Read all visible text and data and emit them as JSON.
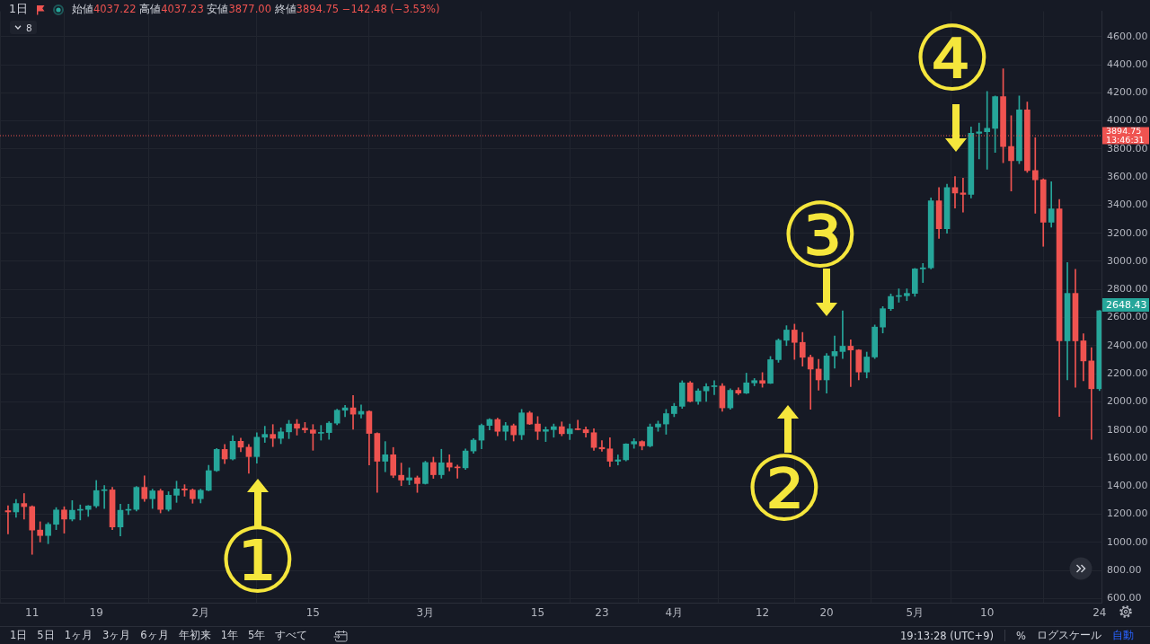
{
  "chart_data": {
    "type": "candlestick",
    "title": "1日",
    "subtitle": "始値4037.22 高値4037.23 安値3877.00 終値3894.75 −142.48 (−3.53%)",
    "x": [
      "--01-08",
      "--01-09",
      "--01-10",
      "--01-11",
      "--01-12",
      "--01-13",
      "--01-14",
      "--01-15",
      "--01-16",
      "--01-17",
      "--01-18",
      "--01-19",
      "--01-20",
      "--01-21",
      "--01-22",
      "--01-23",
      "--01-24",
      "--01-25",
      "--01-26",
      "--01-27",
      "--01-28",
      "--01-29",
      "--01-30",
      "--01-31",
      "--02-01",
      "--02-02",
      "--02-03",
      "--02-04",
      "--02-05",
      "--02-06",
      "--02-07",
      "--02-08",
      "--02-09",
      "--02-10",
      "--02-11",
      "--02-12",
      "--02-13",
      "--02-14",
      "--02-15",
      "--02-16",
      "--02-17",
      "--02-18",
      "--02-19",
      "--02-20",
      "--02-21",
      "--02-22",
      "--02-23",
      "--02-24",
      "--02-25",
      "--02-26",
      "--02-27",
      "--02-28",
      "--03-01",
      "--03-02",
      "--03-03",
      "--03-04",
      "--03-05",
      "--03-06",
      "--03-07",
      "--03-08",
      "--03-09",
      "--03-10",
      "--03-11",
      "--03-12",
      "--03-13",
      "--03-14",
      "--03-15",
      "--03-16",
      "--03-17",
      "--03-18",
      "--03-19",
      "--03-20",
      "--03-21",
      "--03-22",
      "--03-23",
      "--03-24",
      "--03-25",
      "--03-26",
      "--03-27",
      "--03-28",
      "--03-29",
      "--03-30",
      "--03-31",
      "--04-01",
      "--04-02",
      "--04-03",
      "--04-04",
      "--04-05",
      "--04-06",
      "--04-07",
      "--04-08",
      "--04-09",
      "--04-10",
      "--04-11",
      "--04-12",
      "--04-13",
      "--04-14",
      "--04-15",
      "--04-16",
      "--04-17",
      "--04-18",
      "--04-19",
      "--04-20",
      "--04-21",
      "--04-22",
      "--04-23",
      "--04-24",
      "--04-25",
      "--04-26",
      "--04-27",
      "--04-28",
      "--04-29",
      "--04-30",
      "--05-01",
      "--05-02",
      "--05-03",
      "--05-04",
      "--05-05",
      "--05-06",
      "--05-07",
      "--05-08",
      "--05-09",
      "--05-10",
      "--05-11",
      "--05-12",
      "--05-13",
      "--05-14",
      "--05-15",
      "--05-16",
      "--05-17",
      "--05-18",
      "--05-19",
      "--05-20",
      "--05-21",
      "--05-22",
      "--05-23",
      "--05-24"
    ],
    "ohlc": [
      [
        1225,
        1260,
        1060,
        1216
      ],
      [
        1216,
        1305,
        1178,
        1276
      ],
      [
        1276,
        1347,
        1165,
        1254
      ],
      [
        1254,
        1260,
        914,
        1087
      ],
      [
        1087,
        1146,
        1002,
        1048
      ],
      [
        1048,
        1140,
        990,
        1128
      ],
      [
        1128,
        1247,
        1090,
        1230
      ],
      [
        1230,
        1253,
        1065,
        1165
      ],
      [
        1165,
        1297,
        1152,
        1228
      ],
      [
        1228,
        1266,
        1159,
        1234
      ],
      [
        1234,
        1262,
        1184,
        1259
      ],
      [
        1259,
        1440,
        1247,
        1368
      ],
      [
        1368,
        1404,
        1241,
        1373
      ],
      [
        1373,
        1391,
        1090,
        1109
      ],
      [
        1109,
        1272,
        1045,
        1228
      ],
      [
        1228,
        1272,
        1197,
        1234
      ],
      [
        1234,
        1397,
        1222,
        1391
      ],
      [
        1391,
        1473,
        1291,
        1310
      ],
      [
        1310,
        1378,
        1241,
        1366
      ],
      [
        1366,
        1378,
        1209,
        1234
      ],
      [
        1234,
        1360,
        1222,
        1335
      ],
      [
        1335,
        1435,
        1284,
        1380
      ],
      [
        1380,
        1410,
        1328,
        1372
      ],
      [
        1372,
        1380,
        1278,
        1310
      ],
      [
        1310,
        1378,
        1280,
        1370
      ],
      [
        1370,
        1548,
        1366,
        1510
      ],
      [
        1510,
        1668,
        1504,
        1661
      ],
      [
        1661,
        1696,
        1560,
        1593
      ],
      [
        1593,
        1759,
        1585,
        1719
      ],
      [
        1719,
        1742,
        1644,
        1677
      ],
      [
        1677,
        1696,
        1491,
        1610
      ],
      [
        1610,
        1780,
        1564,
        1748
      ],
      [
        1748,
        1826,
        1711,
        1768
      ],
      [
        1768,
        1838,
        1681,
        1740
      ],
      [
        1740,
        1815,
        1702,
        1786
      ],
      [
        1786,
        1868,
        1738,
        1842
      ],
      [
        1842,
        1874,
        1763,
        1812
      ],
      [
        1812,
        1853,
        1780,
        1800
      ],
      [
        1800,
        1838,
        1655,
        1776
      ],
      [
        1776,
        1832,
        1727,
        1781
      ],
      [
        1781,
        1859,
        1733,
        1848
      ],
      [
        1848,
        1947,
        1836,
        1940
      ],
      [
        1940,
        1974,
        1894,
        1957
      ],
      [
        1957,
        2045,
        1805,
        1912
      ],
      [
        1912,
        1978,
        1884,
        1932
      ],
      [
        1932,
        1937,
        1550,
        1775
      ],
      [
        1775,
        1780,
        1355,
        1577
      ],
      [
        1577,
        1717,
        1502,
        1623
      ],
      [
        1623,
        1675,
        1460,
        1477
      ],
      [
        1477,
        1564,
        1403,
        1443
      ],
      [
        1443,
        1530,
        1410,
        1459
      ],
      [
        1459,
        1472,
        1355,
        1418
      ],
      [
        1418,
        1577,
        1414,
        1568
      ],
      [
        1568,
        1606,
        1455,
        1481
      ],
      [
        1481,
        1662,
        1456,
        1566
      ],
      [
        1566,
        1623,
        1508,
        1535
      ],
      [
        1535,
        1550,
        1456,
        1530
      ],
      [
        1530,
        1665,
        1519,
        1650
      ],
      [
        1650,
        1738,
        1633,
        1727
      ],
      [
        1727,
        1842,
        1665,
        1832
      ],
      [
        1832,
        1880,
        1800,
        1874
      ],
      [
        1874,
        1884,
        1758,
        1790
      ],
      [
        1790,
        1853,
        1727,
        1830
      ],
      [
        1830,
        1842,
        1721,
        1765
      ],
      [
        1765,
        1946,
        1731,
        1921
      ],
      [
        1921,
        1932,
        1838,
        1842
      ],
      [
        1842,
        1895,
        1731,
        1790
      ],
      [
        1790,
        1821,
        1717,
        1802
      ],
      [
        1802,
        1842,
        1748,
        1823
      ],
      [
        1823,
        1857,
        1758,
        1773
      ],
      [
        1773,
        1842,
        1731,
        1807
      ],
      [
        1807,
        1869,
        1800,
        1802
      ],
      [
        1802,
        1821,
        1748,
        1780
      ],
      [
        1780,
        1809,
        1654,
        1675
      ],
      [
        1675,
        1723,
        1648,
        1665
      ],
      [
        1665,
        1745,
        1539,
        1577
      ],
      [
        1577,
        1622,
        1550,
        1587
      ],
      [
        1587,
        1702,
        1579,
        1700
      ],
      [
        1700,
        1738,
        1669,
        1717
      ],
      [
        1717,
        1723,
        1658,
        1686
      ],
      [
        1686,
        1842,
        1679,
        1821
      ],
      [
        1821,
        1863,
        1790,
        1842
      ],
      [
        1842,
        1946,
        1769,
        1916
      ],
      [
        1916,
        1989,
        1894,
        1968
      ],
      [
        1968,
        2150,
        1953,
        2135
      ],
      [
        2135,
        2145,
        1999,
        2003
      ],
      [
        2003,
        2093,
        1982,
        2078
      ],
      [
        2078,
        2129,
        2003,
        2108
      ],
      [
        2108,
        2151,
        2051,
        2112
      ],
      [
        2112,
        2129,
        1932,
        1957
      ],
      [
        1957,
        2093,
        1947,
        2082
      ],
      [
        2082,
        2100,
        2051,
        2062
      ],
      [
        2062,
        2204,
        2058,
        2135
      ],
      [
        2135,
        2166,
        2114,
        2151
      ],
      [
        2151,
        2208,
        2104,
        2132
      ],
      [
        2132,
        2323,
        2130,
        2300
      ],
      [
        2300,
        2448,
        2281,
        2438
      ],
      [
        2438,
        2542,
        2400,
        2511
      ],
      [
        2511,
        2553,
        2302,
        2423
      ],
      [
        2423,
        2494,
        2254,
        2317
      ],
      [
        2317,
        2333,
        1947,
        2233
      ],
      [
        2233,
        2302,
        2082,
        2156
      ],
      [
        2156,
        2344,
        2062,
        2327
      ],
      [
        2327,
        2469,
        2239,
        2358
      ],
      [
        2358,
        2647,
        2308,
        2396
      ],
      [
        2396,
        2442,
        2108,
        2369
      ],
      [
        2369,
        2372,
        2156,
        2212
      ],
      [
        2212,
        2354,
        2170,
        2319
      ],
      [
        2319,
        2547,
        2308,
        2532
      ],
      [
        2532,
        2678,
        2490,
        2663
      ],
      [
        2663,
        2768,
        2650,
        2750
      ],
      [
        2750,
        2804,
        2709,
        2755
      ],
      [
        2755,
        2804,
        2720,
        2772
      ],
      [
        2772,
        2950,
        2751,
        2946
      ],
      [
        2946,
        2985,
        2849,
        2954
      ],
      [
        2954,
        3452,
        2946,
        3431
      ],
      [
        3431,
        3525,
        3163,
        3232
      ],
      [
        3232,
        3550,
        3200,
        3525
      ],
      [
        3525,
        3604,
        3379,
        3487
      ],
      [
        3487,
        3592,
        3351,
        3476
      ],
      [
        3476,
        3957,
        3451,
        3912
      ],
      [
        3912,
        3984,
        3730,
        3922
      ],
      [
        3922,
        4210,
        3655,
        3947
      ],
      [
        3947,
        4177,
        3776,
        4172
      ],
      [
        4172,
        4371,
        3702,
        3817
      ],
      [
        3817,
        4037,
        3500,
        3717
      ],
      [
        3717,
        4177,
        3696,
        4078
      ],
      [
        4078,
        4135,
        3633,
        3646
      ],
      [
        3646,
        3880,
        3343,
        3581
      ],
      [
        3581,
        3587,
        3107,
        3278
      ],
      [
        3278,
        3567,
        3243,
        3374
      ],
      [
        3374,
        3441,
        1895,
        2434
      ],
      [
        2434,
        2992,
        2156,
        2772
      ],
      [
        2772,
        2944,
        2103,
        2434
      ],
      [
        2434,
        2484,
        2150,
        2291
      ],
      [
        2291,
        2386,
        1732,
        2093
      ],
      [
        2093,
        2650,
        2080,
        2648.43
      ]
    ],
    "colors": [
      "#ef5350",
      "#26a69a",
      "#ef5350",
      "#ef5350",
      "#ef5350",
      "#26a69a",
      "#26a69a",
      "#ef5350",
      "#26a69a",
      "#26a69a",
      "#26a69a",
      "#26a69a",
      "#26a69a",
      "#ef5350",
      "#26a69a",
      "#26a69a",
      "#26a69a",
      "#ef5350",
      "#26a69a",
      "#ef5350",
      "#26a69a",
      "#26a69a",
      "#ef5350",
      "#ef5350",
      "#26a69a",
      "#26a69a",
      "#26a69a",
      "#ef5350",
      "#26a69a",
      "#ef5350",
      "#ef5350",
      "#26a69a",
      "#26a69a",
      "#ef5350",
      "#26a69a",
      "#26a69a",
      "#ef5350",
      "#ef5350",
      "#ef5350",
      "#26a69a",
      "#26a69a",
      "#26a69a",
      "#26a69a",
      "#ef5350",
      "#26a69a",
      "#ef5350",
      "#ef5350",
      "#26a69a",
      "#ef5350",
      "#ef5350",
      "#26a69a",
      "#ef5350",
      "#26a69a",
      "#ef5350",
      "#26a69a",
      "#ef5350",
      "#ef5350",
      "#26a69a",
      "#26a69a",
      "#26a69a",
      "#26a69a",
      "#ef5350",
      "#26a69a",
      "#ef5350",
      "#26a69a",
      "#ef5350",
      "#ef5350",
      "#26a69a",
      "#26a69a",
      "#ef5350",
      "#26a69a",
      "#ef5350",
      "#ef5350",
      "#ef5350",
      "#ef5350",
      "#ef5350",
      "#26a69a",
      "#26a69a",
      "#26a69a",
      "#ef5350",
      "#26a69a",
      "#26a69a",
      "#26a69a",
      "#26a69a",
      "#26a69a",
      "#ef5350",
      "#26a69a",
      "#26a69a",
      "#26a69a",
      "#ef5350",
      "#26a69a",
      "#ef5350",
      "#26a69a",
      "#26a69a",
      "#ef5350",
      "#26a69a",
      "#26a69a",
      "#26a69a",
      "#ef5350",
      "#ef5350",
      "#ef5350",
      "#ef5350",
      "#26a69a",
      "#26a69a",
      "#26a69a",
      "#ef5350",
      "#ef5350",
      "#26a69a",
      "#26a69a",
      "#26a69a",
      "#26a69a",
      "#26a69a",
      "#26a69a",
      "#26a69a",
      "#26a69a",
      "#26a69a",
      "#ef5350",
      "#26a69a",
      "#ef5350",
      "#ef5350",
      "#26a69a",
      "#26a69a",
      "#26a69a",
      "#26a69a",
      "#ef5350",
      "#ef5350",
      "#26a69a",
      "#ef5350",
      "#ef5350",
      "#ef5350",
      "#26a69a",
      "#ef5350",
      "#26a69a",
      "#ef5350",
      "#ef5350",
      "#ef5350",
      "#26a69a"
    ],
    "xlim": [
      "--01-07",
      "--05-24T06:00"
    ],
    "xticks": [
      {
        "value": "--01-11",
        "label": "11"
      },
      {
        "value": "--01-19",
        "label": "19"
      },
      {
        "value": "--02-01",
        "label": "2月"
      },
      {
        "value": "--02-15",
        "label": "15"
      },
      {
        "value": "--03-01",
        "label": "3月"
      },
      {
        "value": "--03-15",
        "label": "15"
      },
      {
        "value": "--03-23",
        "label": "23"
      },
      {
        "value": "--04-01",
        "label": "4月"
      },
      {
        "value": "--04-12",
        "label": "12"
      },
      {
        "value": "--04-20",
        "label": "20"
      },
      {
        "value": "--05-01",
        "label": "5月"
      },
      {
        "value": "--05-10",
        "label": "10"
      },
      {
        "value": "--05-24",
        "label": "24"
      }
    ],
    "ylim": [
      570,
      4780
    ],
    "yticks": [
      {
        "value": 600,
        "label": "600.00"
      },
      {
        "value": 800,
        "label": "800.00"
      },
      {
        "value": 1000,
        "label": "1000.00"
      },
      {
        "value": 1200,
        "label": "1200.00"
      },
      {
        "value": 1400,
        "label": "1400.00"
      },
      {
        "value": 1600,
        "label": "1600.00"
      },
      {
        "value": 1800,
        "label": "1800.00"
      },
      {
        "value": 2000,
        "label": "2000.00"
      },
      {
        "value": 2200,
        "label": "2200.00"
      },
      {
        "value": 2400,
        "label": "2400.00"
      },
      {
        "value": 2600,
        "label": "2600.00"
      },
      {
        "value": 2800,
        "label": "2800.00"
      },
      {
        "value": 3000,
        "label": "3000.00"
      },
      {
        "value": 3200,
        "label": "3200.00"
      },
      {
        "value": 3400,
        "label": "3400.00"
      },
      {
        "value": 3600,
        "label": "3600.00"
      },
      {
        "value": 3800,
        "label": "3800.00"
      },
      {
        "value": 4000,
        "label": "4000.00"
      },
      {
        "value": 4200,
        "label": "4200.00"
      },
      {
        "value": 4400,
        "label": "4400.00"
      },
      {
        "value": 4600,
        "label": "4600.00"
      }
    ],
    "grid": true,
    "ref_lines": [
      {
        "axis": "y",
        "value": 3894.75,
        "label": "3894.75\n13:46:31",
        "color": "#ef5350",
        "line_style": "dotted"
      }
    ],
    "value_labels": [
      null,
      null,
      null,
      null,
      null,
      null,
      null,
      null,
      null,
      null,
      null,
      null,
      null,
      null,
      null,
      null,
      null,
      null,
      null,
      null,
      null,
      null,
      null,
      null,
      null,
      null,
      null,
      null,
      null,
      null,
      null,
      null,
      null,
      null,
      null,
      null,
      null,
      null,
      null,
      null,
      null,
      null,
      null,
      null,
      null,
      null,
      null,
      null,
      null,
      null,
      null,
      null,
      null,
      null,
      null,
      null,
      null,
      null,
      null,
      null,
      null,
      null,
      null,
      null,
      null,
      null,
      null,
      null,
      null,
      null,
      null,
      null,
      null,
      null,
      null,
      null,
      null,
      null,
      null,
      null,
      null,
      null,
      null,
      null,
      null,
      null,
      null,
      null,
      null,
      null,
      null,
      null,
      null,
      null,
      null,
      null,
      null,
      null,
      null,
      null,
      null,
      null,
      null,
      null,
      null,
      null,
      null,
      null,
      null,
      null,
      null,
      null,
      null,
      null,
      null,
      null,
      null,
      null,
      null,
      null,
      null,
      null,
      null,
      null,
      null,
      null,
      null,
      null,
      null,
      null,
      null,
      null,
      null,
      null,
      null,
      null,
      "2648.43"
    ],
    "annotations": [
      "①",
      "②",
      "③",
      "④",
      "8",
      "1日",
      "5日",
      "1ヶ月",
      "3ヶ月",
      "6ヶ月",
      "年初来",
      "1年",
      "5年",
      "すべて",
      "19:13:28 (UTC+9)",
      "%",
      "ログスケール",
      "自動"
    ]
  }
}
